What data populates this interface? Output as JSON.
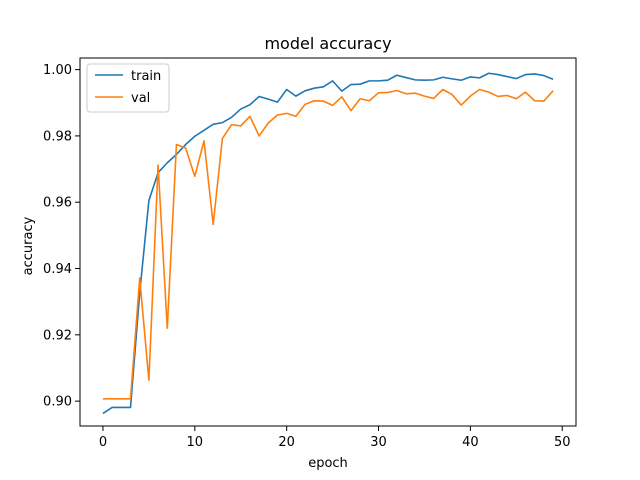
{
  "chart_data": {
    "type": "line",
    "title": "model accuracy",
    "xlabel": "epoch",
    "ylabel": "accuracy",
    "xlim": [
      -2.5,
      51.5
    ],
    "ylim": [
      0.8925,
      1.0035
    ],
    "xticks": [
      0,
      10,
      20,
      30,
      40,
      50
    ],
    "xtick_labels": [
      "0",
      "10",
      "20",
      "30",
      "40",
      "50"
    ],
    "yticks": [
      0.9,
      0.92,
      0.94,
      0.96,
      0.98,
      1.0
    ],
    "ytick_labels": [
      "0.90",
      "0.92",
      "0.94",
      "0.96",
      "0.98",
      "1.00"
    ],
    "grid": false,
    "legend_position": "upper left",
    "x": [
      0,
      1,
      2,
      3,
      4,
      5,
      6,
      7,
      8,
      9,
      10,
      11,
      12,
      13,
      14,
      15,
      16,
      17,
      18,
      19,
      20,
      21,
      22,
      23,
      24,
      25,
      26,
      27,
      28,
      29,
      30,
      31,
      32,
      33,
      34,
      35,
      36,
      37,
      38,
      39,
      40,
      41,
      42,
      43,
      44,
      45,
      46,
      47,
      48,
      49
    ],
    "series": [
      {
        "name": "train",
        "color": "#1f77b4",
        "values": [
          0.8963,
          0.8981,
          0.8981,
          0.8981,
          0.9326,
          0.9605,
          0.9689,
          0.9719,
          0.9744,
          0.9774,
          0.9799,
          0.9817,
          0.9835,
          0.984,
          0.9856,
          0.9881,
          0.9894,
          0.9919,
          0.9911,
          0.9902,
          0.994,
          0.992,
          0.9936,
          0.9944,
          0.9948,
          0.9966,
          0.9935,
          0.9955,
          0.9956,
          0.9966,
          0.9966,
          0.9968,
          0.9983,
          0.9976,
          0.9969,
          0.9968,
          0.9969,
          0.9977,
          0.9972,
          0.9968,
          0.9978,
          0.9975,
          0.9989,
          0.9985,
          0.9979,
          0.9973,
          0.9985,
          0.9987,
          0.9982,
          0.9971
        ]
      },
      {
        "name": "val",
        "color": "#ff7f0e",
        "values": [
          0.9007,
          0.9007,
          0.9007,
          0.9007,
          0.9371,
          0.9063,
          0.9712,
          0.922,
          0.9774,
          0.9763,
          0.9678,
          0.9785,
          0.9533,
          0.9792,
          0.9834,
          0.983,
          0.9859,
          0.98,
          0.9839,
          0.9863,
          0.9868,
          0.9859,
          0.9895,
          0.9906,
          0.9905,
          0.9892,
          0.9918,
          0.9876,
          0.9912,
          0.9906,
          0.993,
          0.9931,
          0.9937,
          0.9927,
          0.9929,
          0.992,
          0.9913,
          0.994,
          0.9925,
          0.9893,
          0.992,
          0.994,
          0.9932,
          0.9919,
          0.9922,
          0.9912,
          0.9932,
          0.9906,
          0.9905,
          0.9936
        ]
      }
    ]
  }
}
